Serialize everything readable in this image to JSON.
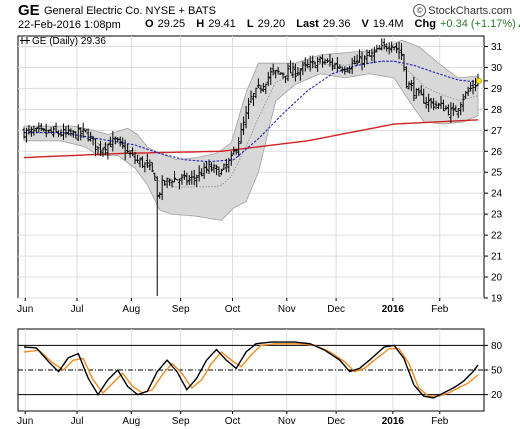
{
  "header": {
    "ticker": "GE",
    "company": "General Electric Co.",
    "exchange": "NYSE + BATS",
    "brand": "StockCharts.com",
    "date": "22-Feb-2016 1:08pm",
    "open_label": "O",
    "open": "29.25",
    "high_label": "H",
    "high": "29.41",
    "low_label": "L",
    "low": "29.20",
    "last_label": "Last",
    "last": "29.36",
    "volume_label": "V",
    "volume": "19.4M",
    "change_label": "Chg",
    "change": "+0.34 (+1.17%)"
  },
  "legend": {
    "text": "GE (Daily) 29.36"
  },
  "colors": {
    "price": "#000000",
    "ma200": "#d42020",
    "ma50": "#2020c0",
    "band": "#d8d8d8",
    "stoch_k": "#000000",
    "stoch_d": "#f08a20"
  },
  "chart_data": [
    {
      "type": "line",
      "subtype": "ohlc-bars",
      "series_name": "GE (Daily)",
      "ylim": [
        19,
        31.5
      ],
      "yticks": [
        19,
        20,
        21,
        22,
        23,
        24,
        25,
        26,
        27,
        28,
        29,
        30,
        31
      ],
      "xlabels": [
        "Jun",
        "Jul",
        "Aug",
        "Sep",
        "Oct",
        "Nov",
        "Dec",
        "2016",
        "Feb"
      ],
      "x_month_pos": [
        0.5,
        21.5,
        43.5,
        63.5,
        84.5,
        106.5,
        126.5,
        149.5,
        168.5
      ],
      "n_points": 185,
      "close_keypoints": [
        [
          0,
          26.9
        ],
        [
          10,
          26.9
        ],
        [
          20,
          26.8
        ],
        [
          25,
          26.9
        ],
        [
          30,
          26.1
        ],
        [
          37,
          26.5
        ],
        [
          45,
          25.6
        ],
        [
          50,
          25.3
        ],
        [
          53,
          24.8
        ],
        [
          54,
          23.8
        ],
        [
          56,
          24.4
        ],
        [
          60,
          24.7
        ],
        [
          67,
          24.6
        ],
        [
          75,
          25.2
        ],
        [
          80,
          25.0
        ],
        [
          84,
          25.6
        ],
        [
          88,
          26.9
        ],
        [
          92,
          28.5
        ],
        [
          100,
          29.7
        ],
        [
          110,
          29.8
        ],
        [
          120,
          30.3
        ],
        [
          130,
          30.0
        ],
        [
          140,
          30.5
        ],
        [
          149,
          31.2
        ],
        [
          153,
          30.6
        ],
        [
          155,
          29.3
        ],
        [
          160,
          28.6
        ],
        [
          165,
          28.3
        ],
        [
          170,
          28.1
        ],
        [
          174,
          27.8
        ],
        [
          178,
          28.6
        ],
        [
          184,
          29.36
        ]
      ],
      "min_low": 19.1,
      "min_low_index": 54,
      "ma200_keypoints": [
        [
          0,
          25.7
        ],
        [
          40,
          25.9
        ],
        [
          80,
          26.0
        ],
        [
          115,
          26.5
        ],
        [
          150,
          27.3
        ],
        [
          184,
          27.5
        ]
      ],
      "ma50_keypoints": [
        [
          0,
          26.9
        ],
        [
          15,
          26.9
        ],
        [
          30,
          26.6
        ],
        [
          45,
          26.3
        ],
        [
          55,
          25.9
        ],
        [
          65,
          25.6
        ],
        [
          75,
          25.5
        ],
        [
          85,
          25.6
        ],
        [
          95,
          26.6
        ],
        [
          105,
          27.8
        ],
        [
          115,
          28.9
        ],
        [
          125,
          29.7
        ],
        [
          135,
          30.1
        ],
        [
          145,
          30.3
        ],
        [
          150,
          30.3
        ],
        [
          158,
          30.1
        ],
        [
          168,
          29.7
        ],
        [
          176,
          29.4
        ],
        [
          184,
          29.3
        ]
      ],
      "band_upper_keypoints": [
        [
          0,
          27.2
        ],
        [
          20,
          27.2
        ],
        [
          28,
          27.0
        ],
        [
          34,
          26.8
        ],
        [
          42,
          27.1
        ],
        [
          46,
          26.8
        ],
        [
          50,
          26.2
        ],
        [
          55,
          25.9
        ],
        [
          62,
          25.6
        ],
        [
          70,
          25.7
        ],
        [
          78,
          25.9
        ],
        [
          84,
          26.4
        ],
        [
          90,
          28.8
        ],
        [
          95,
          30.2
        ],
        [
          100,
          30.2
        ],
        [
          110,
          30.2
        ],
        [
          120,
          30.6
        ],
        [
          130,
          30.7
        ],
        [
          140,
          30.8
        ],
        [
          148,
          31.0
        ],
        [
          153,
          31.3
        ],
        [
          160,
          31.0
        ],
        [
          168,
          30.2
        ],
        [
          176,
          29.5
        ],
        [
          184,
          29.6
        ]
      ],
      "band_lower_keypoints": [
        [
          0,
          26.5
        ],
        [
          15,
          26.5
        ],
        [
          25,
          26.2
        ],
        [
          30,
          25.8
        ],
        [
          38,
          25.8
        ],
        [
          45,
          25.2
        ],
        [
          50,
          24.4
        ],
        [
          55,
          23.2
        ],
        [
          60,
          23.0
        ],
        [
          70,
          22.9
        ],
        [
          80,
          22.7
        ],
        [
          85,
          23.3
        ],
        [
          90,
          23.6
        ],
        [
          95,
          25.0
        ],
        [
          102,
          28.4
        ],
        [
          110,
          29.2
        ],
        [
          120,
          29.7
        ],
        [
          130,
          29.5
        ],
        [
          140,
          29.7
        ],
        [
          150,
          29.5
        ],
        [
          155,
          28.6
        ],
        [
          162,
          27.4
        ],
        [
          170,
          27.3
        ],
        [
          178,
          27.4
        ],
        [
          184,
          27.7
        ]
      ]
    },
    {
      "type": "line",
      "subtype": "stochastic",
      "ylim": [
        0,
        100
      ],
      "yticks": [
        20,
        50,
        80
      ],
      "reference_lines": [
        20,
        50,
        80
      ],
      "xlabels": [
        "Jun",
        "Jul",
        "Aug",
        "Sep",
        "Oct",
        "Nov",
        "Dec",
        "2016",
        "Feb"
      ],
      "k_keypoints": [
        [
          0,
          78
        ],
        [
          5,
          77
        ],
        [
          10,
          60
        ],
        [
          14,
          48
        ],
        [
          18,
          65
        ],
        [
          22,
          70
        ],
        [
          26,
          40
        ],
        [
          30,
          20
        ],
        [
          34,
          38
        ],
        [
          38,
          50
        ],
        [
          42,
          30
        ],
        [
          46,
          20
        ],
        [
          50,
          24
        ],
        [
          54,
          48
        ],
        [
          58,
          62
        ],
        [
          62,
          48
        ],
        [
          66,
          26
        ],
        [
          70,
          40
        ],
        [
          74,
          62
        ],
        [
          78,
          75
        ],
        [
          82,
          62
        ],
        [
          86,
          52
        ],
        [
          90,
          72
        ],
        [
          94,
          82
        ],
        [
          100,
          84
        ],
        [
          110,
          84
        ],
        [
          116,
          82
        ],
        [
          122,
          74
        ],
        [
          128,
          62
        ],
        [
          132,
          48
        ],
        [
          136,
          52
        ],
        [
          140,
          62
        ],
        [
          146,
          78
        ],
        [
          150,
          80
        ],
        [
          154,
          64
        ],
        [
          158,
          32
        ],
        [
          162,
          18
        ],
        [
          166,
          16
        ],
        [
          170,
          22
        ],
        [
          174,
          28
        ],
        [
          178,
          36
        ],
        [
          182,
          48
        ],
        [
          184,
          56
        ]
      ],
      "d_keypoints": [
        [
          0,
          72
        ],
        [
          6,
          74
        ],
        [
          12,
          58
        ],
        [
          16,
          50
        ],
        [
          20,
          62
        ],
        [
          24,
          64
        ],
        [
          28,
          38
        ],
        [
          32,
          22
        ],
        [
          36,
          34
        ],
        [
          40,
          46
        ],
        [
          44,
          30
        ],
        [
          48,
          22
        ],
        [
          52,
          26
        ],
        [
          56,
          44
        ],
        [
          60,
          58
        ],
        [
          64,
          46
        ],
        [
          68,
          28
        ],
        [
          72,
          38
        ],
        [
          76,
          58
        ],
        [
          80,
          72
        ],
        [
          84,
          62
        ],
        [
          88,
          54
        ],
        [
          92,
          68
        ],
        [
          96,
          80
        ],
        [
          102,
          82
        ],
        [
          112,
          82
        ],
        [
          118,
          80
        ],
        [
          124,
          72
        ],
        [
          130,
          60
        ],
        [
          134,
          48
        ],
        [
          138,
          52
        ],
        [
          142,
          62
        ],
        [
          148,
          76
        ],
        [
          152,
          76
        ],
        [
          156,
          58
        ],
        [
          160,
          28
        ],
        [
          164,
          18
        ],
        [
          168,
          18
        ],
        [
          172,
          22
        ],
        [
          176,
          28
        ],
        [
          180,
          34
        ],
        [
          184,
          44
        ]
      ]
    }
  ]
}
